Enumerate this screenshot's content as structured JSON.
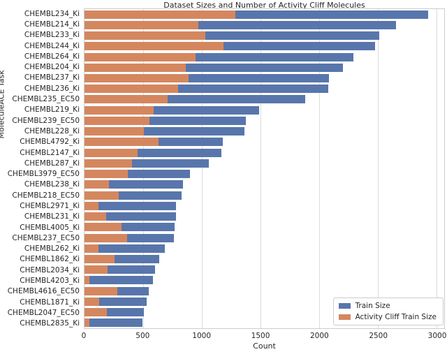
{
  "figure": {
    "title": "Dataset Sizes and Number of Activity Cliff Molecules",
    "xlabel": "Count",
    "ylabel": "MoleculeACE Task"
  },
  "colors": {
    "train": "#5876ab",
    "activity_cliff": "#d4875f",
    "grid": "#dcdcdc",
    "frame": "#cccccc",
    "text": "#262626"
  },
  "chart_data": {
    "type": "bar",
    "orientation": "horizontal",
    "title": "Dataset Sizes and Number of Activity Cliff Molecules",
    "xlabel": "Count",
    "ylabel": "MoleculeACE Task",
    "grid": true,
    "legend_position": "lower right",
    "xlim": [
      0,
      3065
    ],
    "xticks": [
      0,
      500,
      1000,
      1500,
      2000,
      2500,
      3000
    ],
    "categories": [
      "CHEMBL234_Ki",
      "CHEMBL214_Ki",
      "CHEMBL233_Ki",
      "CHEMBL244_Ki",
      "CHEMBL264_Ki",
      "CHEMBL204_Ki",
      "CHEMBL237_Ki",
      "CHEMBL236_Ki",
      "CHEMBL235_EC50",
      "CHEMBL219_Ki",
      "CHEMBL239_EC50",
      "CHEMBL228_Ki",
      "CHEMBL4792_Ki",
      "CHEMBL2147_Ki",
      "CHEMBL287_Ki",
      "CHEMBL3979_EC50",
      "CHEMBL238_Ki",
      "CHEMBL218_EC50",
      "CHEMBL2971_Ki",
      "CHEMBL231_Ki",
      "CHEMBL4005_Ki",
      "CHEMBL237_EC50",
      "CHEMBL262_Ki",
      "CHEMBL1862_Ki",
      "CHEMBL2034_Ki",
      "CHEMBL4203_Ki",
      "CHEMBL4616_EC50",
      "CHEMBL1871_Ki",
      "CHEMBL2047_EC50",
      "CHEMBL2835_Ki"
    ],
    "series": [
      {
        "name": "Train Size",
        "color": "#5876ab",
        "values": [
          2926,
          2654,
          2514,
          2478,
          2290,
          2203,
          2082,
          2078,
          1879,
          1487,
          1377,
          1363,
          1177,
          1165,
          1062,
          900,
          842,
          825,
          781,
          778,
          768,
          764,
          685,
          635,
          600,
          585,
          546,
          527,
          505,
          492
        ]
      },
      {
        "name": "Activity Cliff Train Size",
        "color": "#d4875f",
        "values": [
          1285,
          970,
          1030,
          1186,
          945,
          865,
          885,
          798,
          707,
          589,
          553,
          508,
          632,
          455,
          403,
          369,
          207,
          289,
          119,
          184,
          316,
          362,
          119,
          257,
          194,
          43,
          280,
          126,
          190,
          43
        ]
      }
    ]
  }
}
